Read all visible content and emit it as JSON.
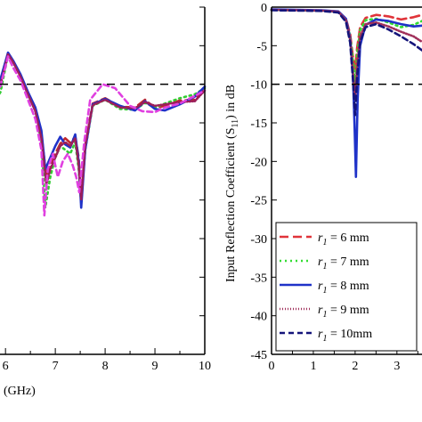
{
  "chart_data": [
    {
      "type": "line",
      "panel": "left",
      "xlabel": "(GHz)",
      "ylabel": "",
      "xlim": [
        5.3,
        10
      ],
      "ylim": [
        -45,
        0
      ],
      "x_ticks": [
        "6",
        "7",
        "8",
        "9",
        "10"
      ],
      "reference_line": -10,
      "grid": false,
      "series": [
        {
          "color": "#c0282e",
          "dash": "10,5",
          "points": [
            [
              5.3,
              -6.0
            ],
            [
              5.5,
              -6.1
            ],
            [
              5.7,
              -7.4
            ],
            [
              5.85,
              -10.2
            ],
            [
              5.9,
              -9.6
            ],
            [
              6.05,
              -6.0
            ],
            [
              6.15,
              -7.0
            ],
            [
              6.3,
              -8.8
            ],
            [
              6.45,
              -11.2
            ],
            [
              6.6,
              -13.2
            ],
            [
              6.72,
              -16.5
            ],
            [
              6.82,
              -22.0
            ],
            [
              6.9,
              -20.5
            ],
            [
              7.0,
              -19.0
            ],
            [
              7.1,
              -17.7
            ],
            [
              7.2,
              -17.0
            ],
            [
              7.3,
              -17.6
            ],
            [
              7.4,
              -16.8
            ],
            [
              7.47,
              -19.5
            ],
            [
              7.52,
              -25.0
            ],
            [
              7.6,
              -18.0
            ],
            [
              7.75,
              -12.5
            ],
            [
              8.0,
              -11.8
            ],
            [
              8.3,
              -12.9
            ],
            [
              8.6,
              -13.0
            ],
            [
              8.8,
              -12.0
            ],
            [
              9.0,
              -13.1
            ],
            [
              9.2,
              -12.8
            ],
            [
              9.5,
              -12.1
            ],
            [
              9.8,
              -12.0
            ],
            [
              10,
              -10.5
            ]
          ]
        },
        {
          "color": "#33cc33",
          "dash": "2,4",
          "points": [
            [
              5.3,
              -6.0
            ],
            [
              5.5,
              -6.2
            ],
            [
              5.7,
              -7.5
            ],
            [
              5.85,
              -11.5
            ],
            [
              5.9,
              -11.0
            ],
            [
              6.05,
              -6.2
            ],
            [
              6.15,
              -7.1
            ],
            [
              6.3,
              -8.9
            ],
            [
              6.45,
              -11.4
            ],
            [
              6.6,
              -13.4
            ],
            [
              6.72,
              -17.5
            ],
            [
              6.8,
              -26.0
            ],
            [
              6.9,
              -22.0
            ],
            [
              7.0,
              -19.5
            ],
            [
              7.1,
              -18.0
            ],
            [
              7.2,
              -18.5
            ],
            [
              7.3,
              -19.0
            ],
            [
              7.4,
              -17.5
            ],
            [
              7.47,
              -21.0
            ],
            [
              7.52,
              -25.5
            ],
            [
              7.6,
              -18.5
            ],
            [
              7.75,
              -12.8
            ],
            [
              8.0,
              -12.0
            ],
            [
              8.3,
              -13.2
            ],
            [
              8.6,
              -13.3
            ],
            [
              8.8,
              -12.4
            ],
            [
              9.0,
              -13.0
            ],
            [
              9.2,
              -12.5
            ],
            [
              9.5,
              -11.8
            ],
            [
              9.8,
              -11.3
            ],
            [
              10,
              -10.5
            ]
          ]
        },
        {
          "color": "#1f32c8",
          "dash": "",
          "points": [
            [
              5.3,
              -5.9
            ],
            [
              5.5,
              -6.0
            ],
            [
              5.7,
              -7.3
            ],
            [
              5.85,
              -9.8
            ],
            [
              5.9,
              -9.3
            ],
            [
              6.05,
              -5.9
            ],
            [
              6.15,
              -6.9
            ],
            [
              6.3,
              -8.7
            ],
            [
              6.45,
              -11.0
            ],
            [
              6.6,
              -13.0
            ],
            [
              6.72,
              -16.0
            ],
            [
              6.8,
              -21.0
            ],
            [
              6.9,
              -19.5
            ],
            [
              7.0,
              -18.0
            ],
            [
              7.1,
              -16.8
            ],
            [
              7.2,
              -17.8
            ],
            [
              7.3,
              -18.2
            ],
            [
              7.4,
              -16.5
            ],
            [
              7.47,
              -20.0
            ],
            [
              7.52,
              -26.0
            ],
            [
              7.6,
              -18.5
            ],
            [
              7.75,
              -12.6
            ],
            [
              8.0,
              -11.9
            ],
            [
              8.3,
              -12.8
            ],
            [
              8.6,
              -13.4
            ],
            [
              8.8,
              -12.2
            ],
            [
              9.0,
              -13.2
            ],
            [
              9.2,
              -13.4
            ],
            [
              9.5,
              -12.6
            ],
            [
              9.8,
              -11.6
            ],
            [
              10,
              -10.3
            ]
          ]
        },
        {
          "color": "#9b1e5a",
          "dash": "1,2",
          "points": [
            [
              5.3,
              -6.1
            ],
            [
              5.5,
              -6.2
            ],
            [
              5.7,
              -7.6
            ],
            [
              5.85,
              -10.5
            ],
            [
              5.9,
              -10.0
            ],
            [
              6.05,
              -6.1
            ],
            [
              6.15,
              -7.1
            ],
            [
              6.3,
              -9.0
            ],
            [
              6.45,
              -11.3
            ],
            [
              6.6,
              -13.5
            ],
            [
              6.72,
              -17.0
            ],
            [
              6.82,
              -23.0
            ],
            [
              6.9,
              -21.0
            ],
            [
              7.0,
              -19.5
            ],
            [
              7.1,
              -18.0
            ],
            [
              7.2,
              -17.5
            ],
            [
              7.3,
              -18.0
            ],
            [
              7.4,
              -17.0
            ],
            [
              7.47,
              -20.5
            ],
            [
              7.52,
              -25.0
            ],
            [
              7.6,
              -18.0
            ],
            [
              7.75,
              -12.7
            ],
            [
              8.0,
              -12.0
            ],
            [
              8.3,
              -13.0
            ],
            [
              8.6,
              -13.1
            ],
            [
              8.8,
              -12.3
            ],
            [
              9.0,
              -12.8
            ],
            [
              9.2,
              -12.6
            ],
            [
              9.5,
              -12.3
            ],
            [
              9.8,
              -12.2
            ],
            [
              10,
              -10.8
            ]
          ]
        },
        {
          "color": "#e040e0",
          "dash": "6,4",
          "points": [
            [
              5.3,
              -6.2
            ],
            [
              5.5,
              -6.3
            ],
            [
              5.7,
              -8.0
            ],
            [
              5.85,
              -10.8
            ],
            [
              5.9,
              -10.2
            ],
            [
              6.05,
              -6.4
            ],
            [
              6.15,
              -7.8
            ],
            [
              6.3,
              -9.5
            ],
            [
              6.45,
              -12.0
            ],
            [
              6.6,
              -14.5
            ],
            [
              6.72,
              -18.5
            ],
            [
              6.78,
              -27.0
            ],
            [
              6.85,
              -21.0
            ],
            [
              6.95,
              -19.0
            ],
            [
              7.05,
              -22.0
            ],
            [
              7.15,
              -20.0
            ],
            [
              7.25,
              -19.0
            ],
            [
              7.35,
              -20.5
            ],
            [
              7.42,
              -22.0
            ],
            [
              7.48,
              -24.0
            ],
            [
              7.58,
              -17.5
            ],
            [
              7.7,
              -12.0
            ],
            [
              7.95,
              -10.0
            ],
            [
              8.2,
              -10.5
            ],
            [
              8.5,
              -12.8
            ],
            [
              8.75,
              -13.5
            ],
            [
              9.0,
              -13.6
            ],
            [
              9.2,
              -13.0
            ],
            [
              9.5,
              -12.5
            ],
            [
              9.8,
              -11.5
            ],
            [
              10,
              -10.8
            ]
          ]
        }
      ]
    },
    {
      "type": "line",
      "panel": "right",
      "xlabel": "",
      "ylabel": "Input Reflection Coefficient (S11) in dB",
      "ylabel_main": "Input Reflection Coefficient (S",
      "ylabel_sub": "11",
      "ylabel_tail": ") in dB",
      "xlim": [
        0,
        3.6
      ],
      "ylim": [
        -45,
        0
      ],
      "x_ticks": [
        "0",
        "1",
        "2",
        "3"
      ],
      "y_ticks": [
        "0",
        "-5",
        "-10",
        "-15",
        "-20",
        "-25",
        "-30",
        "-35",
        "-40",
        "-45"
      ],
      "reference_line": -10,
      "grid": false,
      "legend_position": "bottom-left",
      "series": [
        {
          "name_symbol": "r",
          "name_sub": "1",
          "name_value": " = 6 mm",
          "color": "#e0343a",
          "dash": "10,5",
          "points": [
            [
              0,
              -0.35
            ],
            [
              0.6,
              -0.4
            ],
            [
              1.2,
              -0.45
            ],
            [
              1.6,
              -0.6
            ],
            [
              1.78,
              -1.5
            ],
            [
              1.88,
              -3.5
            ],
            [
              1.95,
              -6.5
            ],
            [
              2.0,
              -8.0
            ],
            [
              2.05,
              -5.2
            ],
            [
              2.12,
              -2.6
            ],
            [
              2.25,
              -1.4
            ],
            [
              2.5,
              -1.0
            ],
            [
              2.8,
              -1.2
            ],
            [
              3.1,
              -1.6
            ],
            [
              3.4,
              -1.3
            ],
            [
              3.6,
              -1.0
            ]
          ]
        },
        {
          "name_symbol": "r",
          "name_sub": "1",
          "name_value": " = 7 mm",
          "color": "#33dd33",
          "dash": "2,4",
          "points": [
            [
              0,
              -0.35
            ],
            [
              0.6,
              -0.4
            ],
            [
              1.2,
              -0.45
            ],
            [
              1.6,
              -0.6
            ],
            [
              1.78,
              -1.6
            ],
            [
              1.88,
              -3.8
            ],
            [
              1.95,
              -7.0
            ],
            [
              2.0,
              -10.0
            ],
            [
              2.05,
              -6.0
            ],
            [
              2.12,
              -3.0
            ],
            [
              2.25,
              -1.7
            ],
            [
              2.5,
              -1.5
            ],
            [
              2.8,
              -2.0
            ],
            [
              3.1,
              -2.6
            ],
            [
              3.4,
              -2.3
            ],
            [
              3.6,
              -1.8
            ]
          ]
        },
        {
          "name_symbol": "r",
          "name_sub": "1",
          "name_value": " = 8 mm",
          "color": "#1f32c8",
          "dash": "",
          "points": [
            [
              0,
              -0.3
            ],
            [
              0.6,
              -0.35
            ],
            [
              1.2,
              -0.4
            ],
            [
              1.6,
              -0.55
            ],
            [
              1.78,
              -1.5
            ],
            [
              1.88,
              -4.0
            ],
            [
              1.95,
              -9.0
            ],
            [
              1.99,
              -16.0
            ],
            [
              2.02,
              -22.0
            ],
            [
              2.06,
              -12.0
            ],
            [
              2.12,
              -5.0
            ],
            [
              2.25,
              -2.3
            ],
            [
              2.5,
              -1.6
            ],
            [
              2.8,
              -1.8
            ],
            [
              3.1,
              -2.2
            ],
            [
              3.4,
              -2.5
            ],
            [
              3.6,
              -2.4
            ]
          ]
        },
        {
          "name_symbol": "r",
          "name_sub": "1",
          "name_value": " = 9 mm",
          "color": "#a0305a",
          "dash": "1,2",
          "points": [
            [
              0,
              -0.35
            ],
            [
              0.6,
              -0.4
            ],
            [
              1.2,
              -0.45
            ],
            [
              1.6,
              -0.6
            ],
            [
              1.78,
              -1.7
            ],
            [
              1.88,
              -4.2
            ],
            [
              1.95,
              -8.5
            ],
            [
              2.0,
              -12.0
            ],
            [
              2.05,
              -7.5
            ],
            [
              2.12,
              -3.8
            ],
            [
              2.25,
              -2.2
            ],
            [
              2.5,
              -2.0
            ],
            [
              2.8,
              -2.5
            ],
            [
              3.1,
              -3.2
            ],
            [
              3.4,
              -3.8
            ],
            [
              3.6,
              -4.5
            ]
          ]
        },
        {
          "name_symbol": "r",
          "name_sub": "1",
          "name_value": " = 10mm",
          "color": "#14147a",
          "dash": "6,4",
          "points": [
            [
              0,
              -0.4
            ],
            [
              0.6,
              -0.45
            ],
            [
              1.2,
              -0.5
            ],
            [
              1.6,
              -0.7
            ],
            [
              1.78,
              -1.9
            ],
            [
              1.88,
              -4.6
            ],
            [
              1.95,
              -9.5
            ],
            [
              2.0,
              -14.0
            ],
            [
              2.05,
              -9.0
            ],
            [
              2.12,
              -4.5
            ],
            [
              2.25,
              -2.6
            ],
            [
              2.5,
              -2.2
            ],
            [
              2.8,
              -2.9
            ],
            [
              3.1,
              -3.8
            ],
            [
              3.4,
              -4.8
            ],
            [
              3.6,
              -5.6
            ]
          ]
        }
      ]
    }
  ]
}
